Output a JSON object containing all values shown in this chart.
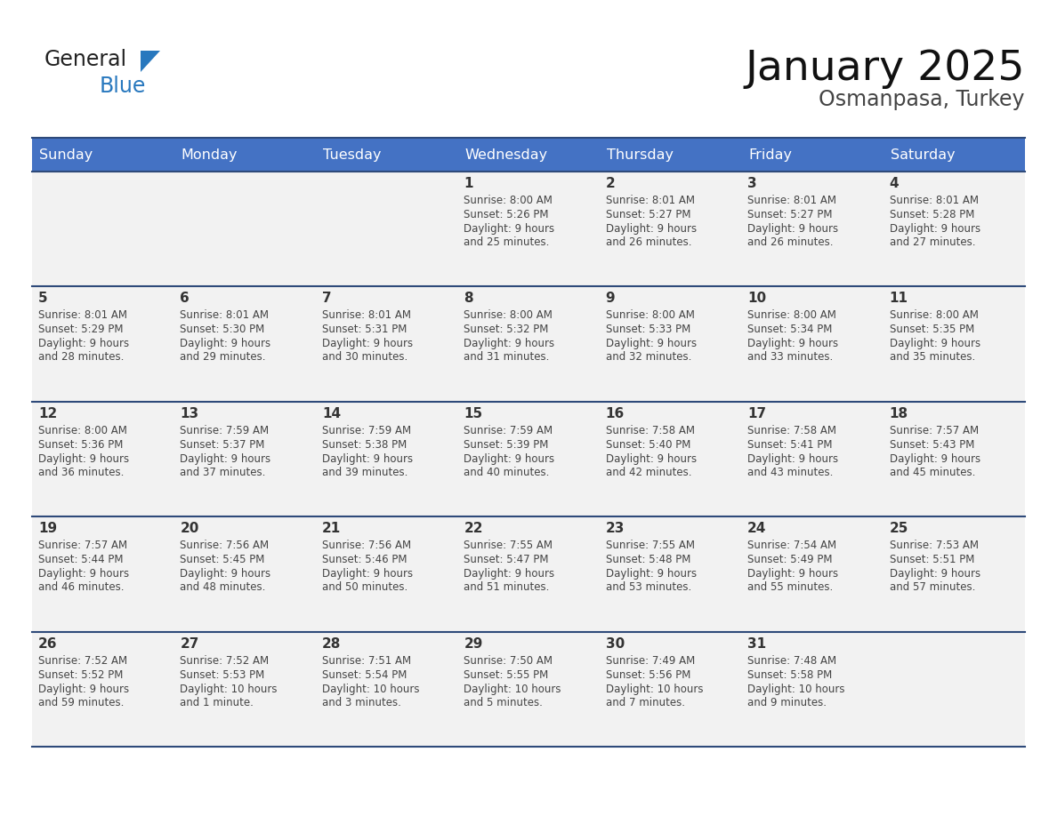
{
  "title": "January 2025",
  "subtitle": "Osmanpasa, Turkey",
  "days_of_week": [
    "Sunday",
    "Monday",
    "Tuesday",
    "Wednesday",
    "Thursday",
    "Friday",
    "Saturday"
  ],
  "header_bg": "#4472C4",
  "header_text": "#FFFFFF",
  "row_bg": "#F2F2F2",
  "border_color": "#2E4A7A",
  "day_num_color": "#333333",
  "text_color": "#444444",
  "title_color": "#111111",
  "subtitle_color": "#444444",
  "logo_general_color": "#222222",
  "logo_blue_color": "#2878BE",
  "calendar_data": [
    {
      "week": 0,
      "day": 3,
      "date": 1,
      "sunrise": "8:00 AM",
      "sunset": "5:26 PM",
      "daylight": "9 hours and 25 minutes."
    },
    {
      "week": 0,
      "day": 4,
      "date": 2,
      "sunrise": "8:01 AM",
      "sunset": "5:27 PM",
      "daylight": "9 hours and 26 minutes."
    },
    {
      "week": 0,
      "day": 5,
      "date": 3,
      "sunrise": "8:01 AM",
      "sunset": "5:27 PM",
      "daylight": "9 hours and 26 minutes."
    },
    {
      "week": 0,
      "day": 6,
      "date": 4,
      "sunrise": "8:01 AM",
      "sunset": "5:28 PM",
      "daylight": "9 hours and 27 minutes."
    },
    {
      "week": 1,
      "day": 0,
      "date": 5,
      "sunrise": "8:01 AM",
      "sunset": "5:29 PM",
      "daylight": "9 hours and 28 minutes."
    },
    {
      "week": 1,
      "day": 1,
      "date": 6,
      "sunrise": "8:01 AM",
      "sunset": "5:30 PM",
      "daylight": "9 hours and 29 minutes."
    },
    {
      "week": 1,
      "day": 2,
      "date": 7,
      "sunrise": "8:01 AM",
      "sunset": "5:31 PM",
      "daylight": "9 hours and 30 minutes."
    },
    {
      "week": 1,
      "day": 3,
      "date": 8,
      "sunrise": "8:00 AM",
      "sunset": "5:32 PM",
      "daylight": "9 hours and 31 minutes."
    },
    {
      "week": 1,
      "day": 4,
      "date": 9,
      "sunrise": "8:00 AM",
      "sunset": "5:33 PM",
      "daylight": "9 hours and 32 minutes."
    },
    {
      "week": 1,
      "day": 5,
      "date": 10,
      "sunrise": "8:00 AM",
      "sunset": "5:34 PM",
      "daylight": "9 hours and 33 minutes."
    },
    {
      "week": 1,
      "day": 6,
      "date": 11,
      "sunrise": "8:00 AM",
      "sunset": "5:35 PM",
      "daylight": "9 hours and 35 minutes."
    },
    {
      "week": 2,
      "day": 0,
      "date": 12,
      "sunrise": "8:00 AM",
      "sunset": "5:36 PM",
      "daylight": "9 hours and 36 minutes."
    },
    {
      "week": 2,
      "day": 1,
      "date": 13,
      "sunrise": "7:59 AM",
      "sunset": "5:37 PM",
      "daylight": "9 hours and 37 minutes."
    },
    {
      "week": 2,
      "day": 2,
      "date": 14,
      "sunrise": "7:59 AM",
      "sunset": "5:38 PM",
      "daylight": "9 hours and 39 minutes."
    },
    {
      "week": 2,
      "day": 3,
      "date": 15,
      "sunrise": "7:59 AM",
      "sunset": "5:39 PM",
      "daylight": "9 hours and 40 minutes."
    },
    {
      "week": 2,
      "day": 4,
      "date": 16,
      "sunrise": "7:58 AM",
      "sunset": "5:40 PM",
      "daylight": "9 hours and 42 minutes."
    },
    {
      "week": 2,
      "day": 5,
      "date": 17,
      "sunrise": "7:58 AM",
      "sunset": "5:41 PM",
      "daylight": "9 hours and 43 minutes."
    },
    {
      "week": 2,
      "day": 6,
      "date": 18,
      "sunrise": "7:57 AM",
      "sunset": "5:43 PM",
      "daylight": "9 hours and 45 minutes."
    },
    {
      "week": 3,
      "day": 0,
      "date": 19,
      "sunrise": "7:57 AM",
      "sunset": "5:44 PM",
      "daylight": "9 hours and 46 minutes."
    },
    {
      "week": 3,
      "day": 1,
      "date": 20,
      "sunrise": "7:56 AM",
      "sunset": "5:45 PM",
      "daylight": "9 hours and 48 minutes."
    },
    {
      "week": 3,
      "day": 2,
      "date": 21,
      "sunrise": "7:56 AM",
      "sunset": "5:46 PM",
      "daylight": "9 hours and 50 minutes."
    },
    {
      "week": 3,
      "day": 3,
      "date": 22,
      "sunrise": "7:55 AM",
      "sunset": "5:47 PM",
      "daylight": "9 hours and 51 minutes."
    },
    {
      "week": 3,
      "day": 4,
      "date": 23,
      "sunrise": "7:55 AM",
      "sunset": "5:48 PM",
      "daylight": "9 hours and 53 minutes."
    },
    {
      "week": 3,
      "day": 5,
      "date": 24,
      "sunrise": "7:54 AM",
      "sunset": "5:49 PM",
      "daylight": "9 hours and 55 minutes."
    },
    {
      "week": 3,
      "day": 6,
      "date": 25,
      "sunrise": "7:53 AM",
      "sunset": "5:51 PM",
      "daylight": "9 hours and 57 minutes."
    },
    {
      "week": 4,
      "day": 0,
      "date": 26,
      "sunrise": "7:52 AM",
      "sunset": "5:52 PM",
      "daylight": "9 hours and 59 minutes."
    },
    {
      "week": 4,
      "day": 1,
      "date": 27,
      "sunrise": "7:52 AM",
      "sunset": "5:53 PM",
      "daylight": "10 hours and 1 minute."
    },
    {
      "week": 4,
      "day": 2,
      "date": 28,
      "sunrise": "7:51 AM",
      "sunset": "5:54 PM",
      "daylight": "10 hours and 3 minutes."
    },
    {
      "week": 4,
      "day": 3,
      "date": 29,
      "sunrise": "7:50 AM",
      "sunset": "5:55 PM",
      "daylight": "10 hours and 5 minutes."
    },
    {
      "week": 4,
      "day": 4,
      "date": 30,
      "sunrise": "7:49 AM",
      "sunset": "5:56 PM",
      "daylight": "10 hours and 7 minutes."
    },
    {
      "week": 4,
      "day": 5,
      "date": 31,
      "sunrise": "7:48 AM",
      "sunset": "5:58 PM",
      "daylight": "10 hours and 9 minutes."
    }
  ]
}
